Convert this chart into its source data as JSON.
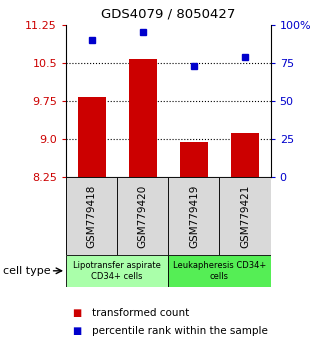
{
  "title": "GDS4079 / 8050427",
  "samples": [
    "GSM779418",
    "GSM779420",
    "GSM779419",
    "GSM779421"
  ],
  "transformed_counts": [
    9.82,
    10.58,
    8.93,
    9.12
  ],
  "percentile_ranks": [
    90,
    95,
    73,
    79
  ],
  "cell_types": [
    {
      "label": "Lipotransfer aspirate\nCD34+ cells",
      "color": "#aaffaa",
      "samples": [
        0,
        1
      ]
    },
    {
      "label": "Leukapheresis CD34+\ncells",
      "color": "#55ee55",
      "samples": [
        2,
        3
      ]
    }
  ],
  "ylim_left": [
    8.25,
    11.25
  ],
  "ylim_right": [
    0,
    100
  ],
  "yticks_left": [
    8.25,
    9.0,
    9.75,
    10.5,
    11.25
  ],
  "yticks_right": [
    0,
    25,
    50,
    75,
    100
  ],
  "ytick_labels_right": [
    "0",
    "25",
    "50",
    "75",
    "100%"
  ],
  "bar_color": "#cc0000",
  "dot_color": "#0000cc",
  "bar_bottom": 8.25,
  "legend_items": [
    {
      "color": "#cc0000",
      "label": "transformed count"
    },
    {
      "color": "#0000cc",
      "label": "percentile rank within the sample"
    }
  ]
}
